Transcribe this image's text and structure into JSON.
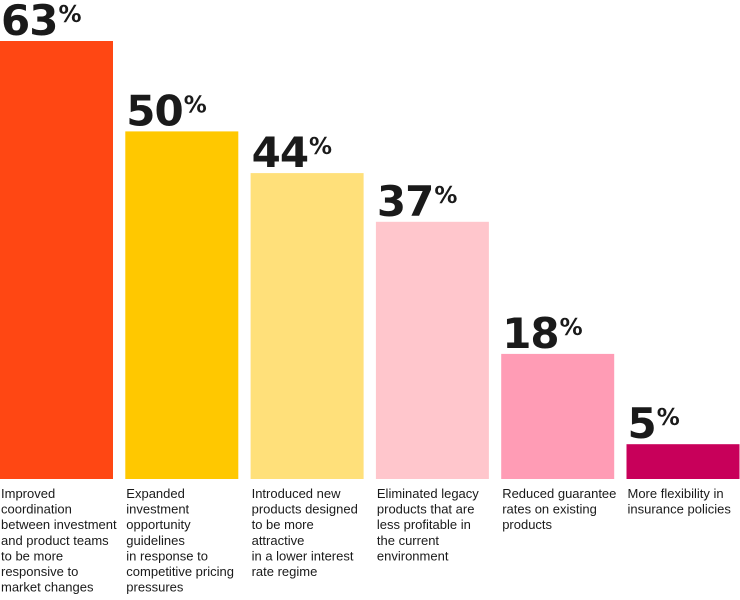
{
  "chart_data": {
    "type": "bar",
    "title": "",
    "xlabel": "",
    "ylabel": "",
    "ylim": [
      0,
      63
    ],
    "grid": false,
    "value_suffix": "%",
    "categories": [
      [
        "Improved",
        "coordination",
        "between investment",
        "and product teams",
        "to be more",
        "responsive to",
        "market changes"
      ],
      [
        "Expanded",
        "investment",
        "opportunity",
        "guidelines",
        "in response to",
        "competitive pricing",
        "pressures"
      ],
      [
        "Introduced new",
        "products designed",
        "to be more",
        "attractive",
        "in a lower interest",
        "rate regime"
      ],
      [
        "Eliminated legacy",
        "products that are",
        "less profitable in",
        "the current",
        "environment"
      ],
      [
        "Reduced guarantee",
        "rates on existing",
        "products"
      ],
      [
        "More flexibility in",
        "insurance policies"
      ]
    ],
    "values": [
      63,
      50,
      44,
      37,
      18,
      5
    ],
    "colors": [
      "#ff4713",
      "#ffc800",
      "#ffe07a",
      "#ffc6cc",
      "#ff9cb5",
      "#c8005a"
    ]
  }
}
